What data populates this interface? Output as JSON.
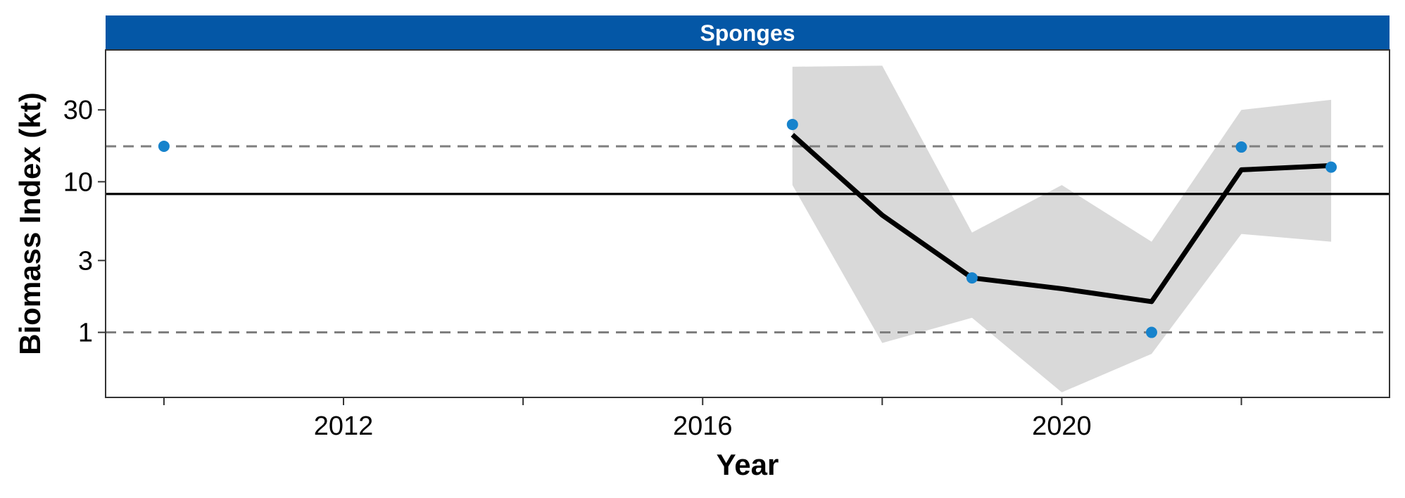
{
  "chart_data": {
    "type": "line",
    "panel_title": "Sponges",
    "xlabel": "Year",
    "ylabel": "Biomass Index (kt)",
    "y_scale": "log10",
    "xlim": [
      2009.35,
      2023.65
    ],
    "ylim": [
      0.37,
      75
    ],
    "x_ticks": [
      2010,
      2012,
      2014,
      2016,
      2018,
      2020,
      2022
    ],
    "x_tick_labels": [
      "",
      "2012",
      "",
      "2016",
      "",
      "2020",
      ""
    ],
    "y_ticks": [
      1,
      3,
      10,
      30
    ],
    "y_tick_labels": [
      "1",
      "3",
      "10",
      "30"
    ],
    "grid": false,
    "observed_points": {
      "x": [
        2010,
        2017,
        2019,
        2021,
        2022,
        2023
      ],
      "y": [
        17.2,
        24.0,
        2.3,
        1.0,
        17.0,
        12.5
      ]
    },
    "fitted_line": {
      "x": [
        2017,
        2018,
        2019,
        2020,
        2021,
        2022,
        2023
      ],
      "y": [
        20.5,
        6.0,
        2.3,
        1.95,
        1.6,
        12.0,
        12.8
      ]
    },
    "confidence_band": {
      "x": [
        2017,
        2018,
        2019,
        2020,
        2021,
        2022,
        2023
      ],
      "lower": [
        9.5,
        0.85,
        1.25,
        0.4,
        0.72,
        4.5,
        4.0
      ],
      "upper": [
        58,
        59,
        4.6,
        9.5,
        4.0,
        30,
        35
      ]
    },
    "reference_lines": [
      {
        "y": 17.2,
        "style": "dashed",
        "color": "#7f7f7f"
      },
      {
        "y": 8.3,
        "style": "solid",
        "color": "#000000"
      },
      {
        "y": 1.0,
        "style": "dashed",
        "color": "#7f7f7f"
      }
    ],
    "colors": {
      "strip": "#0457A6",
      "points": "#1783CC",
      "fit": "#000000",
      "band": "#D9D9D9"
    }
  }
}
